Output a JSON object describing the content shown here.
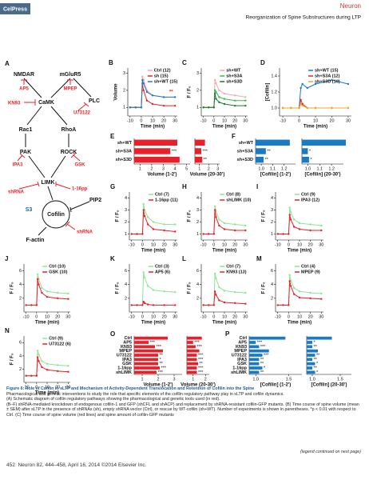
{
  "header": {
    "logo": "CelPress",
    "journal": "Neuron",
    "running_title": "Reorganization of Spine Substructures during LTP"
  },
  "diagram": {
    "panel": "A",
    "nodes": [
      "NMDAR",
      "mGluR5",
      "AP5",
      "MPEP",
      "KN93",
      "CaMK",
      "PLC",
      "U73122",
      "Rac1",
      "RhoA",
      "PAK",
      "ROCK",
      "IPA3",
      "GSK",
      "LIMK",
      "shRNA",
      "1-16pp",
      "PIP2",
      "S3",
      "Cofilin",
      "shRNA",
      "F-actin"
    ]
  },
  "chart_data": [
    {
      "type": "line",
      "panel": "B",
      "ylabel": "Volume",
      "xlabel": "Time (min)",
      "annotation": "**",
      "x": [
        -10,
        -5,
        0,
        1,
        2,
        5,
        10,
        20,
        30
      ],
      "xlim": [
        -12,
        32
      ],
      "xticks": [
        -10,
        0,
        10,
        20,
        30
      ],
      "ylim": [
        0.5,
        3.3
      ],
      "yticks": [
        1,
        2,
        3
      ],
      "series": [
        {
          "name": "Ctrl (12)",
          "color": "#f4a6b6",
          "values": [
            1,
            1,
            1,
            2.8,
            2.6,
            2.0,
            1.7,
            1.6,
            1.6
          ]
        },
        {
          "name": "sh (15)",
          "color": "#e8202a",
          "values": [
            1,
            1,
            1,
            2.4,
            2.0,
            1.4,
            1.2,
            1.1,
            1.1
          ]
        },
        {
          "name": "sh+WT (15)",
          "color": "#1a7ac4",
          "values": [
            1,
            1,
            1,
            2.6,
            2.4,
            1.9,
            1.7,
            1.6,
            1.6
          ]
        }
      ]
    },
    {
      "type": "line",
      "panel": "C",
      "ylabel": "F / F₀",
      "xlabel": "Time (min)",
      "x": [
        -10,
        -5,
        0,
        1,
        2,
        5,
        10,
        20,
        30
      ],
      "xlim": [
        -12,
        32
      ],
      "xticks": [
        -10,
        0,
        10,
        20,
        30
      ],
      "ylim": [
        0.5,
        3.3
      ],
      "yticks": [
        1,
        2,
        3
      ],
      "series": [
        {
          "name": "sh+WT",
          "color": "#f4a6b6",
          "values": [
            1,
            1,
            1,
            2.6,
            2.4,
            2.0,
            1.8,
            1.7,
            1.6
          ]
        },
        {
          "name": "sh+S3A",
          "color": "#3cb84a",
          "values": [
            1,
            1,
            1,
            2.0,
            1.9,
            1.6,
            1.5,
            1.4,
            1.4
          ]
        },
        {
          "name": "sh+S3D",
          "color": "#1e7a2a",
          "values": [
            1,
            1,
            1,
            1.8,
            1.5,
            1.3,
            1.2,
            1.1,
            1.1
          ]
        }
      ]
    },
    {
      "type": "line",
      "panel": "D",
      "ylabel": "[Cofilin]",
      "xlabel": "Time (min)",
      "x": [
        -10,
        -5,
        0,
        1,
        2,
        5,
        10,
        20,
        30
      ],
      "xlim": [
        -12,
        32
      ],
      "xticks": [
        -10,
        0,
        10,
        20,
        30
      ],
      "ylim": [
        0.9,
        1.5
      ],
      "yticks": [
        {
          "value": 1,
          "label": "1.0"
        },
        {
          "value": 1.2,
          "label": "1.2"
        },
        {
          "value": 1.4,
          "label": "1.4"
        }
      ],
      "series": [
        {
          "name": "sh+WT (15)",
          "color": "#1a7ac4",
          "values": [
            1,
            1,
            1,
            1.25,
            1.3,
            1.25,
            1.3,
            1.35,
            1.3
          ]
        },
        {
          "name": "sh+S3A (12)",
          "color": "#e8202a",
          "values": [
            1,
            1,
            1,
            1.1,
            1.05,
            1.0,
            1.0,
            1.0,
            1.0
          ]
        },
        {
          "name": "sh+S3D (10)",
          "color": "#f5a623",
          "values": [
            1,
            1,
            1,
            1.05,
            1.03,
            1.0,
            1.0,
            1.0,
            1.0
          ]
        }
      ]
    },
    {
      "type": "bar",
      "panel": "E",
      "xlabel": "Volume (1-2')",
      "categories": [
        "sh+WT",
        "sh+S3A",
        "sh+S3D"
      ],
      "values": [
        4.2,
        3.6,
        4.4
      ],
      "annotations": [
        null,
        "***",
        null
      ],
      "color": "#e8202a",
      "xlim": [
        0.5,
        5.3
      ],
      "xticks": [
        1,
        2,
        3,
        4,
        5
      ]
    },
    {
      "type": "bar",
      "xlabel": "Volume (20-30')",
      "values": [
        1.6,
        1.2,
        1.3
      ],
      "annotations": [
        null,
        "***",
        "**"
      ],
      "color": "#e8202a",
      "xlim": [
        0.5,
        3.2
      ],
      "xticks": [
        1,
        2,
        3
      ]
    },
    {
      "type": "bar",
      "panel": "F",
      "xlabel": "[Cofilin] (1-2')",
      "categories": [
        "sh+WT",
        "sh+S3A",
        "sh+S3D"
      ],
      "values": [
        1.25,
        1.04,
        1.02
      ],
      "annotations": [
        null,
        "**",
        "**"
      ],
      "color": "#1a7ac4",
      "xlim": [
        0.95,
        1.3
      ],
      "xticks": [
        {
          "value": 1,
          "label": "1.0"
        },
        {
          "value": 1.1,
          "label": "1.1"
        },
        {
          "value": 1.2,
          "label": "1.2"
        }
      ]
    },
    {
      "type": "bar",
      "xlabel": "[Cofilin] (20-30')",
      "values": [
        1.32,
        1.0,
        1.01
      ],
      "annotations": [
        null,
        "*",
        "*"
      ],
      "color": "#1a7ac4",
      "xlim": [
        0.95,
        1.3
      ],
      "xticks": [
        {
          "value": 1,
          "label": "1.0"
        },
        {
          "value": 1.1,
          "label": "1.1"
        },
        {
          "value": 1.2,
          "label": "1.2"
        }
      ]
    },
    {
      "type": "line",
      "panel": "G",
      "ylabel": "F / F₀",
      "xlabel": "Time (min)",
      "x": [
        -10,
        -5,
        0,
        1,
        2,
        5,
        10,
        20,
        30
      ],
      "xlim": [
        -12,
        32
      ],
      "xticks": [
        -10,
        0,
        10,
        20,
        30
      ],
      "ylim": [
        0.5,
        4.5
      ],
      "yticks": [
        1,
        2,
        3,
        4
      ],
      "series": [
        {
          "name": "Ctrl (7)",
          "color": "#8fe39a",
          "values": [
            1,
            1,
            1,
            3.5,
            3.0,
            2.4,
            2.0,
            1.8,
            1.8
          ]
        },
        {
          "name": "1-16pp (11)",
          "color": "#e8202a",
          "values": [
            1,
            1,
            1,
            3.0,
            2.5,
            1.8,
            1.4,
            1.3,
            1.2
          ]
        }
      ]
    },
    {
      "type": "line",
      "panel": "H",
      "ylabel": "F / F₀",
      "xlabel": "Time (min)",
      "x": [
        -10,
        -5,
        0,
        1,
        2,
        5,
        10,
        20,
        30
      ],
      "xlim": [
        -12,
        32
      ],
      "xticks": [
        -10,
        0,
        10,
        20,
        30
      ],
      "ylim": [
        0.5,
        4.5
      ],
      "yticks": [
        1,
        2,
        3,
        4
      ],
      "series": [
        {
          "name": "Ctrl (8)",
          "color": "#8fe39a",
          "values": [
            1,
            1,
            1,
            3.3,
            2.9,
            2.2,
            1.9,
            1.8,
            1.7
          ]
        },
        {
          "name": "shLIMK (10)",
          "color": "#e8202a",
          "values": [
            1,
            1,
            1,
            3.0,
            2.4,
            1.7,
            1.4,
            1.3,
            1.3
          ]
        }
      ]
    },
    {
      "type": "line",
      "panel": "I",
      "ylabel": "F / F₀",
      "xlabel": "Time (min)",
      "x": [
        -10,
        -5,
        0,
        1,
        2,
        5,
        10,
        20,
        30
      ],
      "xlim": [
        -12,
        32
      ],
      "xticks": [
        -10,
        0,
        10,
        20,
        30
      ],
      "ylim": [
        0.5,
        4.5
      ],
      "yticks": [
        1,
        2,
        3,
        4
      ],
      "series": [
        {
          "name": "Ctrl (9)",
          "color": "#8fe39a",
          "values": [
            1,
            1,
            1,
            3.2,
            2.8,
            2.2,
            1.9,
            1.8,
            1.7
          ]
        },
        {
          "name": "IPA3 (12)",
          "color": "#e8202a",
          "values": [
            1,
            1,
            1,
            2.6,
            2.2,
            1.6,
            1.4,
            1.3,
            1.3
          ]
        }
      ]
    },
    {
      "type": "line",
      "panel": "J",
      "ylabel": "F / F₀",
      "xlabel": "Time (min)",
      "x": [
        -10,
        -5,
        0,
        1,
        2,
        5,
        10,
        20,
        30
      ],
      "xlim": [
        -12,
        32
      ],
      "xticks": [
        -10,
        0,
        10,
        20,
        30
      ],
      "ylim": [
        0,
        7
      ],
      "yticks": [
        2,
        4,
        6
      ],
      "series": [
        {
          "name": "Ctrl (10)",
          "color": "#8fe39a",
          "values": [
            1,
            1,
            1,
            5.5,
            4.8,
            3.5,
            3.0,
            2.8,
            2.7
          ]
        },
        {
          "name": "GSK (10)",
          "color": "#e8202a",
          "values": [
            1,
            1,
            1,
            4.8,
            4.0,
            2.8,
            2.2,
            2.0,
            1.9
          ]
        }
      ]
    },
    {
      "type": "line",
      "panel": "K",
      "ylabel": "F / F₀",
      "xlabel": "Time (min)",
      "x": [
        -10,
        -5,
        0,
        1,
        2,
        5,
        10,
        20,
        30
      ],
      "xlim": [
        -12,
        32
      ],
      "xticks": [
        -10,
        0,
        10,
        20,
        30
      ],
      "ylim": [
        0,
        7
      ],
      "yticks": [
        2,
        4,
        6
      ],
      "series": [
        {
          "name": "Ctrl (3)",
          "color": "#8fe39a",
          "values": [
            1,
            1,
            1,
            5.8,
            5.0,
            3.8,
            3.2,
            3.0,
            2.9
          ]
        },
        {
          "name": "AP5 (6)",
          "color": "#e8202a",
          "values": [
            1,
            1,
            1,
            1.5,
            1.3,
            1.1,
            1.0,
            1.0,
            1.0
          ]
        }
      ]
    },
    {
      "type": "line",
      "panel": "L",
      "ylabel": "F / F₀",
      "xlabel": "Time (min)",
      "x": [
        -10,
        -5,
        0,
        1,
        2,
        5,
        10,
        20,
        30
      ],
      "xlim": [
        -12,
        32
      ],
      "xticks": [
        -10,
        0,
        10,
        20,
        30
      ],
      "ylim": [
        0,
        7
      ],
      "yticks": [
        2,
        4,
        6
      ],
      "series": [
        {
          "name": "Ctrl (7)",
          "color": "#8fe39a",
          "values": [
            1,
            1,
            1,
            5.6,
            4.9,
            3.6,
            3.1,
            2.9,
            2.8
          ]
        },
        {
          "name": "KN93 (13)",
          "color": "#e8202a",
          "values": [
            1,
            1,
            1,
            3.0,
            2.5,
            1.7,
            1.4,
            1.3,
            1.2
          ]
        }
      ]
    },
    {
      "type": "line",
      "panel": "M",
      "ylabel": "F / F₀",
      "xlabel": "Time (min)",
      "x": [
        -10,
        -5,
        0,
        1,
        2,
        5,
        10,
        20,
        30
      ],
      "xlim": [
        -12,
        32
      ],
      "xticks": [
        -10,
        0,
        10,
        20,
        30
      ],
      "ylim": [
        0,
        7
      ],
      "yticks": [
        2,
        4,
        6
      ],
      "series": [
        {
          "name": "Ctrl (4)",
          "color": "#8fe39a",
          "values": [
            1,
            1,
            1,
            5.4,
            4.6,
            3.5,
            3.0,
            2.8,
            2.7
          ]
        },
        {
          "name": "MPEP (9)",
          "color": "#e8202a",
          "values": [
            1,
            1,
            1,
            4.5,
            3.8,
            2.6,
            2.1,
            2.0,
            1.9
          ]
        }
      ]
    },
    {
      "type": "line",
      "panel": "N",
      "ylabel": "F / F₀",
      "xlabel": "Time (min)",
      "x": [
        -10,
        -5,
        0,
        1,
        2,
        5,
        10,
        20,
        30
      ],
      "xlim": [
        -12,
        32
      ],
      "xticks": [
        -10,
        0,
        10,
        20,
        30
      ],
      "ylim": [
        0,
        7
      ],
      "yticks": [
        2,
        4,
        6
      ],
      "series": [
        {
          "name": "Ctrl (9)",
          "color": "#8fe39a",
          "values": [
            1,
            1,
            1,
            4.8,
            4.2,
            3.2,
            2.8,
            2.6,
            2.5
          ]
        },
        {
          "name": "U73122 (6)",
          "color": "#e8202a",
          "values": [
            1,
            1,
            1,
            3.8,
            3.2,
            2.3,
            1.9,
            1.7,
            1.6
          ]
        }
      ]
    },
    {
      "type": "bar",
      "panel": "O",
      "xlabel": "Volume (1-2')",
      "categories": [
        "Ctrl",
        "AP5",
        "KN93",
        "MPEP",
        "U73122",
        "IPA3",
        "GSK",
        "1-16pp",
        "shLIMK"
      ],
      "values": [
        2.6,
        1.4,
        1.8,
        2.3,
        2.0,
        2.0,
        2.0,
        2.1,
        1.9
      ],
      "annotations": [
        null,
        "***",
        "***",
        null,
        "**",
        "*",
        "**",
        "***",
        "***"
      ],
      "color": "#e8202a",
      "xlim": [
        0.5,
        3.5
      ],
      "xticks": [
        1,
        2,
        3
      ]
    },
    {
      "type": "bar",
      "xlabel": "Volume (20-30')",
      "values": [
        1.7,
        1.0,
        1.2,
        1.5,
        1.3,
        1.3,
        1.4,
        1.3,
        1.3
      ],
      "annotations": [
        null,
        "***",
        "***",
        null,
        "***",
        "***",
        "**",
        "***",
        "***"
      ],
      "color": "#e8202a",
      "xlim": [
        0.5,
        2.3
      ],
      "xticks": [
        1,
        2
      ]
    },
    {
      "type": "bar",
      "panel": "P",
      "xlabel": "[Cofilin] (1-2')",
      "categories": [
        "Ctrl",
        "AP5",
        "KN93",
        "MPEP",
        "U73122",
        "IPA3",
        "GSK",
        "1-16pp",
        "shLIMK"
      ],
      "values": [
        1.45,
        1.0,
        1.05,
        1.2,
        1.1,
        1.05,
        1.05,
        1.1,
        1.05
      ],
      "annotations": [
        null,
        "***",
        "***",
        null,
        "***",
        "**",
        "**",
        "*",
        "**"
      ],
      "color": "#1a7ac4",
      "xlim": [
        0.9,
        1.7
      ],
      "xticks": [
        {
          "value": 1,
          "label": "1.0"
        },
        {
          "value": 1.5,
          "label": "1.5"
        }
      ]
    },
    {
      "type": "bar",
      "xlabel": "[Cofilin] (20-30')",
      "values": [
        1.35,
        1.0,
        1.0,
        1.1,
        1.05,
        1.0,
        1.05,
        1.0,
        1.05
      ],
      "annotations": [
        null,
        "*",
        "**",
        null,
        "**",
        "**",
        "*",
        "**",
        "*"
      ],
      "color": "#1a7ac4",
      "xlim": [
        0.9,
        1.7
      ],
      "xticks": [
        {
          "value": 1,
          "label": "1.0"
        },
        {
          "value": 1.5,
          "label": "1.5"
        }
      ]
    }
  ],
  "caption": {
    "title": "Figure 6. Role of Cofilin in sLTP and Mechanism of Activity-Dependent Translocation and Retention of Cofilin into the Spine",
    "paragraphs": [
      "Pharmacological and genetic interventions to study the role that specific elements of the cofilin regulatory pathway play in sLTP and cofilin dynamics.",
      "(A) Schematic diagram of cofilin regulatory pathways showing the pharmacological and genetic tools used (in red).",
      "(B–F) shRNA-mediated knockdown of endogenous cofilin-1 and GFP (shCFL and shACP) and replacement by shRNA-resistant cofilin-GFP mutants. (B) Time course of spine volume (mean ± SEM) after sLTP in the presence of shRNAs (sh), empty shRNA vector (Ctrl), or rescue by WT-cofilin (sh+WT). Number of experiments is shown in parentheses. *p < 0.01 with respect to Ctrl. (C) Time course of spine volume (red lines) and spine amount of cofilin-GFP mutants"
    ],
    "continued": "(legend continued on next page)"
  },
  "footer": {
    "page": "452",
    "citation": "Neuron 82, 444–458, April 16, 2014 ©2014 Elsevier Inc."
  }
}
